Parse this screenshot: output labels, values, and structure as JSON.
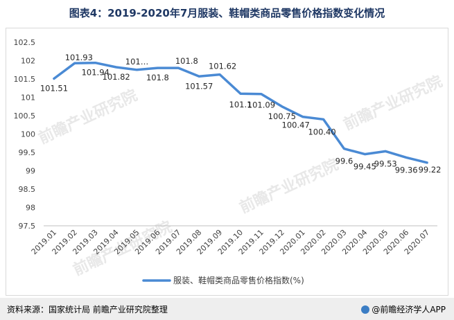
{
  "title": "图表4：2019-2020年7月服装、鞋帽类商品零售价格指数变化情况",
  "footer": {
    "source": "资料来源：国家统计局  前瞻产业研究院整理",
    "brand": "@前瞻经济学人APP"
  },
  "watermark": "前瞻产业研究院",
  "colors": {
    "line": "#4a8ad4",
    "title": "#1f3864"
  },
  "chart_data": {
    "type": "line",
    "categories": [
      "2019.01",
      "2019.02",
      "2019.03",
      "2019.04",
      "2019.05",
      "2019.06",
      "2019.07",
      "2019.08",
      "2019.09",
      "2019.10",
      "2019.11",
      "2019.12",
      "2020.01",
      "2020.02",
      "2020.03",
      "2020.04",
      "2020.05",
      "2020.06",
      "2020.07"
    ],
    "series": [
      {
        "name": "服装、鞋帽类商品零售价格指数(%)",
        "values": [
          101.51,
          101.93,
          101.94,
          101.82,
          101.75,
          101.8,
          101.8,
          101.57,
          101.62,
          101.1,
          101.09,
          100.75,
          100.47,
          100.4,
          99.6,
          99.45,
          99.53,
          99.36,
          99.22
        ],
        "labels": [
          "101.51",
          "101.93",
          "101.94",
          "101.82",
          "101…",
          "101.8",
          "101.8",
          "101.57",
          "101.62",
          "101.1",
          "101.09",
          "100.75",
          "100.47",
          "100.40",
          "99.6",
          "99.45",
          "99.53",
          "99.36",
          "99.22"
        ]
      }
    ],
    "yticks": [
      "97.5",
      "98",
      "98.5",
      "99",
      "99.5",
      "100",
      "100.5",
      "101",
      "101.5",
      "102",
      "102.5"
    ],
    "ylim": [
      97.5,
      102.5
    ],
    "grid": false,
    "legend_position": "bottom"
  }
}
